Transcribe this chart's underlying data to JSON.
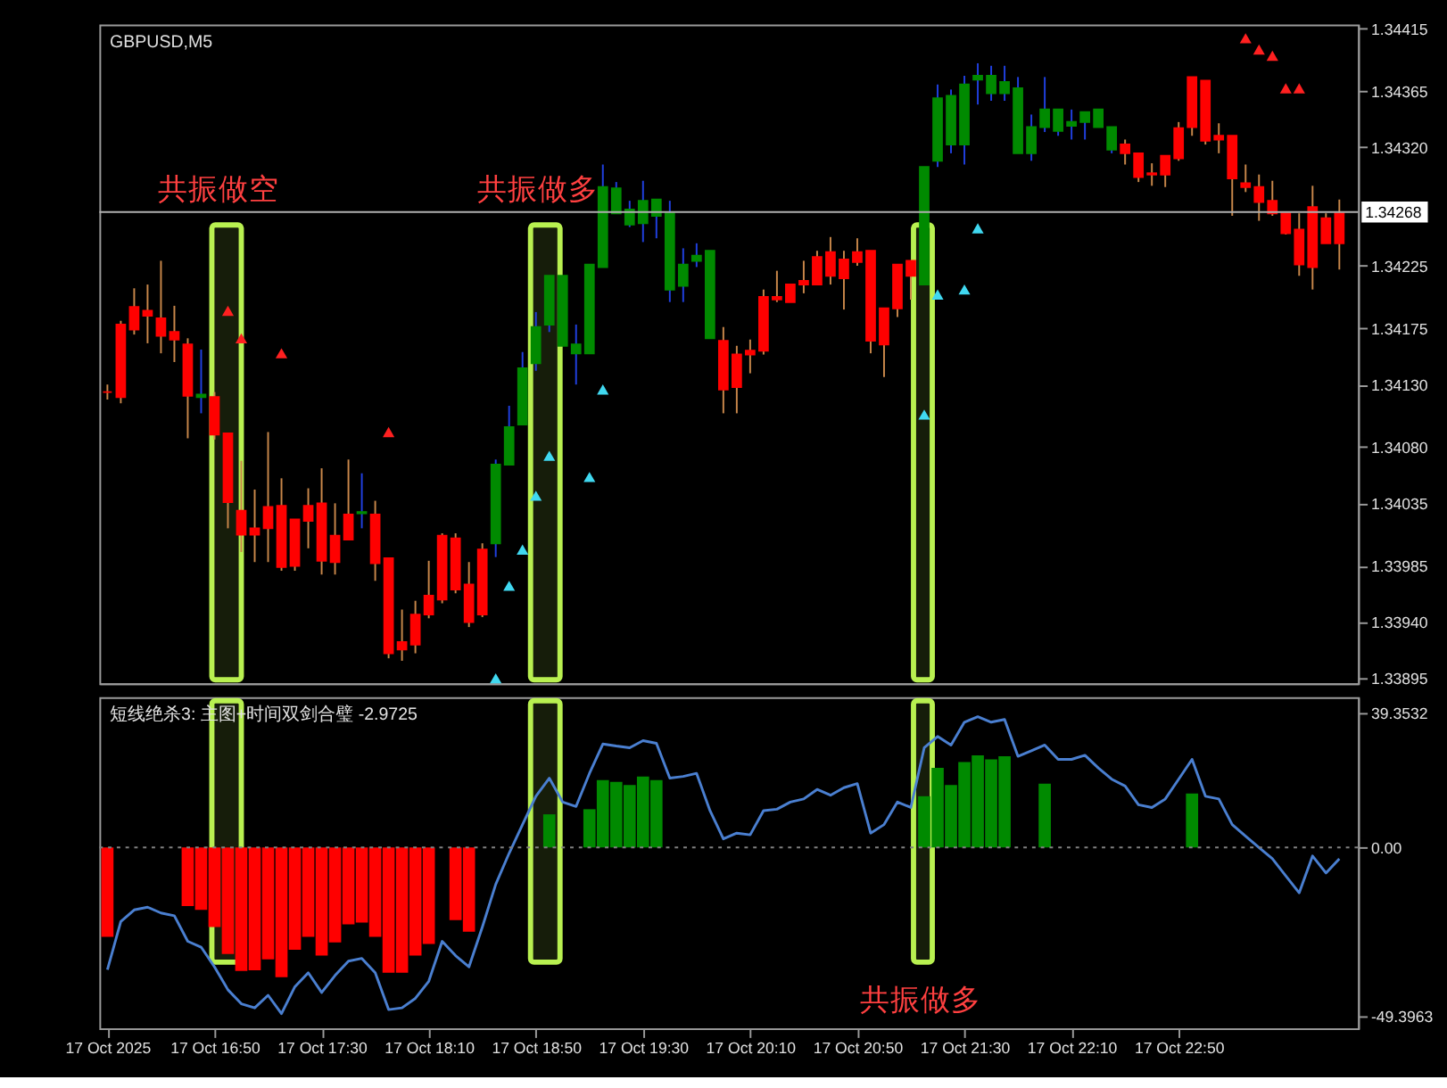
{
  "chart_data": [
    {
      "type": "candlestick",
      "title": "GBPUSD,M5",
      "x": [
        "2025-10-17T16:10",
        "2025-10-17T16:15",
        "2025-10-17T16:20",
        "2025-10-17T16:25",
        "2025-10-17T16:30",
        "2025-10-17T16:35",
        "2025-10-17T16:40",
        "2025-10-17T16:45",
        "2025-10-17T16:50",
        "2025-10-17T16:55",
        "2025-10-17T17:00",
        "2025-10-17T17:05",
        "2025-10-17T17:10",
        "2025-10-17T17:15",
        "2025-10-17T17:20",
        "2025-10-17T17:25",
        "2025-10-17T17:30",
        "2025-10-17T17:35",
        "2025-10-17T17:40",
        "2025-10-17T17:45",
        "2025-10-17T17:50",
        "2025-10-17T17:55",
        "2025-10-17T18:00",
        "2025-10-17T18:05",
        "2025-10-17T18:10",
        "2025-10-17T18:15",
        "2025-10-17T18:20",
        "2025-10-17T18:25",
        "2025-10-17T18:30",
        "2025-10-17T18:35",
        "2025-10-17T18:40",
        "2025-10-17T18:45",
        "2025-10-17T18:50",
        "2025-10-17T18:55",
        "2025-10-17T19:00",
        "2025-10-17T19:05",
        "2025-10-17T19:10",
        "2025-10-17T19:15",
        "2025-10-17T19:20",
        "2025-10-17T19:25",
        "2025-10-17T19:30",
        "2025-10-17T19:35",
        "2025-10-17T19:40",
        "2025-10-17T19:45",
        "2025-10-17T19:50",
        "2025-10-17T19:55",
        "2025-10-17T20:00",
        "2025-10-17T20:05",
        "2025-10-17T20:10",
        "2025-10-17T20:15",
        "2025-10-17T20:20",
        "2025-10-17T20:25",
        "2025-10-17T20:30",
        "2025-10-17T20:35",
        "2025-10-17T20:40",
        "2025-10-17T20:45",
        "2025-10-17T20:50",
        "2025-10-17T20:55",
        "2025-10-17T21:00",
        "2025-10-17T21:05",
        "2025-10-17T21:10",
        "2025-10-17T21:15",
        "2025-10-17T21:20",
        "2025-10-17T21:25",
        "2025-10-17T21:30",
        "2025-10-17T21:35",
        "2025-10-17T21:40",
        "2025-10-17T21:45",
        "2025-10-17T21:50",
        "2025-10-17T21:55",
        "2025-10-17T22:00",
        "2025-10-17T22:05",
        "2025-10-17T22:10",
        "2025-10-17T22:15",
        "2025-10-17T22:20",
        "2025-10-17T22:25",
        "2025-10-17T22:30",
        "2025-10-17T22:35",
        "2025-10-17T22:40",
        "2025-10-17T22:45",
        "2025-10-17T22:50",
        "2025-10-17T22:55",
        "2025-10-17T23:00",
        "2025-10-17T23:05",
        "2025-10-17T23:10",
        "2025-10-17T23:15",
        "2025-10-17T23:20",
        "2025-10-17T23:25",
        "2025-10-17T23:30",
        "2025-10-17T23:35",
        "2025-10-17T23:40",
        "2025-10-17T23:45",
        "2025-10-17T23:50"
      ],
      "ohlc": [
        [
          1.34124,
          1.3413,
          1.34118,
          1.34124
        ],
        [
          1.34178,
          1.34181,
          1.34115,
          1.3412
        ],
        [
          1.34192,
          1.34207,
          1.3417,
          1.34174
        ],
        [
          1.34189,
          1.3421,
          1.34163,
          1.34185
        ],
        [
          1.34183,
          1.34229,
          1.34155,
          1.34169
        ],
        [
          1.34172,
          1.34193,
          1.34148,
          1.34166
        ],
        [
          1.34162,
          1.34167,
          1.34087,
          1.34121
        ],
        [
          1.3412,
          1.34158,
          1.34107,
          1.34122
        ],
        [
          1.3412,
          1.34124,
          1.34086,
          1.3409
        ],
        [
          1.34091,
          1.34091,
          1.34015,
          1.34036
        ],
        [
          1.34029,
          1.34069,
          1.33996,
          1.3401
        ],
        [
          1.34015,
          1.34046,
          1.33988,
          1.3401
        ],
        [
          1.34032,
          1.34092,
          1.33988,
          1.34015
        ],
        [
          1.34033,
          1.34055,
          1.33981,
          1.33984
        ],
        [
          1.34022,
          1.34022,
          1.33981,
          1.33985
        ],
        [
          1.34033,
          1.34047,
          1.33999,
          1.34021
        ],
        [
          1.34035,
          1.34063,
          1.33978,
          1.33989
        ],
        [
          1.34009,
          1.34035,
          1.33978,
          1.33988
        ],
        [
          1.34026,
          1.3407,
          1.34006,
          1.34006
        ],
        [
          1.34027,
          1.34059,
          1.34015,
          1.34028
        ],
        [
          1.34026,
          1.34037,
          1.33973,
          1.33987
        ],
        [
          1.33991,
          1.33991,
          1.33911,
          1.33915
        ],
        [
          1.33924,
          1.3395,
          1.33909,
          1.33918
        ],
        [
          1.33946,
          1.33957,
          1.33915,
          1.33922
        ],
        [
          1.33961,
          1.33989,
          1.33943,
          1.33946
        ],
        [
          1.34009,
          1.34011,
          1.33955,
          1.33958
        ],
        [
          1.34007,
          1.34011,
          1.33963,
          1.33966
        ],
        [
          1.3397,
          1.33988,
          1.33936,
          1.3394
        ],
        [
          1.33998,
          1.34003,
          1.33944,
          1.33946
        ],
        [
          1.34003,
          1.3407,
          1.33992,
          1.34066
        ],
        [
          1.34066,
          1.34113,
          1.34066,
          1.34096
        ],
        [
          1.34098,
          1.34156,
          1.34098,
          1.34143
        ],
        [
          1.34147,
          1.34188,
          1.34141,
          1.34176
        ],
        [
          1.34178,
          1.34217,
          1.34172,
          1.34217
        ],
        [
          1.34161,
          1.34217,
          1.34161,
          1.34217
        ],
        [
          1.34155,
          1.34178,
          1.3413,
          1.34162
        ],
        [
          1.34155,
          1.34226,
          1.34155,
          1.34226
        ],
        [
          1.34224,
          1.34306,
          1.34224,
          1.34288
        ],
        [
          1.34267,
          1.34292,
          1.34267,
          1.34287
        ],
        [
          1.34258,
          1.34277,
          1.34256,
          1.3427
        ],
        [
          1.34259,
          1.34293,
          1.34244,
          1.34277
        ],
        [
          1.34265,
          1.34278,
          1.34247,
          1.34278
        ],
        [
          1.34206,
          1.34277,
          1.34196,
          1.34267
        ],
        [
          1.34209,
          1.34239,
          1.34196,
          1.34226
        ],
        [
          1.34229,
          1.34243,
          1.34224,
          1.34233
        ],
        [
          1.34167,
          1.34237,
          1.34167,
          1.34237
        ],
        [
          1.34165,
          1.34176,
          1.34107,
          1.34126
        ],
        [
          1.34154,
          1.34161,
          1.34107,
          1.34128
        ],
        [
          1.34157,
          1.34166,
          1.34139,
          1.34154
        ],
        [
          1.342,
          1.34206,
          1.34154,
          1.34157
        ],
        [
          1.342,
          1.34221,
          1.34196,
          1.34198
        ],
        [
          1.3421,
          1.3421,
          1.34196,
          1.34196
        ],
        [
          1.34213,
          1.34229,
          1.34203,
          1.3421
        ],
        [
          1.34232,
          1.34237,
          1.3421,
          1.3421
        ],
        [
          1.34236,
          1.34248,
          1.3421,
          1.34217
        ],
        [
          1.3423,
          1.34237,
          1.3419,
          1.34215
        ],
        [
          1.34236,
          1.34247,
          1.34225,
          1.34228
        ],
        [
          1.34237,
          1.34237,
          1.34155,
          1.34165
        ],
        [
          1.34191,
          1.34191,
          1.34136,
          1.34162
        ],
        [
          1.34226,
          1.34226,
          1.34184,
          1.34191
        ],
        [
          1.34229,
          1.34229,
          1.34198,
          1.34217
        ],
        [
          1.3421,
          1.34304,
          1.3421,
          1.34304
        ],
        [
          1.34309,
          1.3437,
          1.34304,
          1.34359
        ],
        [
          1.34322,
          1.34366,
          1.34315,
          1.34361
        ],
        [
          1.34322,
          1.34377,
          1.34306,
          1.3437
        ],
        [
          1.34374,
          1.34387,
          1.34354,
          1.34377
        ],
        [
          1.34363,
          1.34385,
          1.34357,
          1.34377
        ],
        [
          1.34363,
          1.34385,
          1.34357,
          1.34372
        ],
        [
          1.34315,
          1.34376,
          1.34315,
          1.34367
        ],
        [
          1.34315,
          1.34346,
          1.34309,
          1.34336
        ],
        [
          1.34336,
          1.34376,
          1.34332,
          1.3435
        ],
        [
          1.34333,
          1.3435,
          1.34329,
          1.3435
        ],
        [
          1.34337,
          1.3435,
          1.34326,
          1.3434
        ],
        [
          1.3434,
          1.34348,
          1.34326,
          1.34348
        ],
        [
          1.34336,
          1.3435,
          1.34336,
          1.3435
        ],
        [
          1.34318,
          1.34336,
          1.34315,
          1.34336
        ],
        [
          1.34322,
          1.34326,
          1.34306,
          1.34315
        ],
        [
          1.34315,
          1.34315,
          1.34292,
          1.34296
        ],
        [
          1.34299,
          1.34307,
          1.34289,
          1.34298
        ],
        [
          1.34313,
          1.34313,
          1.34288,
          1.34298
        ],
        [
          1.34335,
          1.3434,
          1.34309,
          1.34311
        ],
        [
          1.34376,
          1.34376,
          1.34329,
          1.34336
        ],
        [
          1.34373,
          1.34373,
          1.34322,
          1.34325
        ],
        [
          1.34329,
          1.34339,
          1.34315,
          1.34326
        ],
        [
          1.34329,
          1.34329,
          1.34265,
          1.34295
        ],
        [
          1.34291,
          1.34306,
          1.34284,
          1.34288
        ],
        [
          1.34288,
          1.34298,
          1.34261,
          1.34276
        ],
        [
          1.34277,
          1.34293,
          1.34265,
          1.34267
        ],
        [
          1.34267,
          1.34267,
          1.3425,
          1.34251
        ],
        [
          1.34254,
          1.34267,
          1.34217,
          1.34226
        ],
        [
          1.34272,
          1.34289,
          1.34206,
          1.34224
        ],
        [
          1.34263,
          1.34267,
          1.34243,
          1.34243
        ],
        [
          1.34267,
          1.34278,
          1.34222,
          1.34243
        ]
      ],
      "colors": [
        "#ff0000",
        "#ff0000",
        "#ff0000",
        "#ff0000",
        "#ff0000",
        "#ff0000",
        "#ff0000",
        "#008a00",
        "#ff0000",
        "#ff0000",
        "#ff0000",
        "#ff0000",
        "#ff0000",
        "#ff0000",
        "#ff0000",
        "#ff0000",
        "#ff0000",
        "#ff0000",
        "#ff0000",
        "#008a00",
        "#ff0000",
        "#ff0000",
        "#ff0000",
        "#ff0000",
        "#ff0000",
        "#ff0000",
        "#ff0000",
        "#ff0000",
        "#ff0000",
        "#008a00",
        "#008a00",
        "#008a00",
        "#008a00",
        "#008a00",
        "#008a00",
        "#008a00",
        "#008a00",
        "#008a00",
        "#008a00",
        "#008a00",
        "#008a00",
        "#008a00",
        "#008a00",
        "#008a00",
        "#008a00",
        "#008a00",
        "#ff0000",
        "#ff0000",
        "#ff0000",
        "#ff0000",
        "#ff0000",
        "#ff0000",
        "#ff0000",
        "#ff0000",
        "#ff0000",
        "#ff0000",
        "#ff0000",
        "#ff0000",
        "#ff0000",
        "#ff0000",
        "#ff0000",
        "#008a00",
        "#008a00",
        "#008a00",
        "#008a00",
        "#008a00",
        "#008a00",
        "#008a00",
        "#008a00",
        "#008a00",
        "#008a00",
        "#008a00",
        "#008a00",
        "#008a00",
        "#008a00",
        "#008a00",
        "#ff0000",
        "#ff0000",
        "#ff0000",
        "#ff0000",
        "#ff0000",
        "#ff0000",
        "#ff0000",
        "#ff0000",
        "#ff0000",
        "#ff0000",
        "#ff0000",
        "#ff0000",
        "#ff0000",
        "#ff0000",
        "#ff0000",
        "#ff0000",
        "#ff0000"
      ],
      "series": [
        {
          "type": "scatter",
          "color": "#ff2020",
          "marker": "triangle",
          "x": [
            "2025-10-17T16:55",
            "2025-10-17T17:00",
            "2025-10-17T17:15",
            "2025-10-17T17:55",
            "2025-10-17T23:15",
            "2025-10-17T23:20",
            "2025-10-17T23:25",
            "2025-10-17T23:30",
            "2025-10-17T23:35"
          ],
          "values": [
            1.34189,
            1.34167,
            1.34155,
            1.34092,
            1.34407,
            1.34398,
            1.34393,
            1.34367,
            1.34367
          ]
        },
        {
          "type": "scatter",
          "color": "#40d8f0",
          "marker": "triangle",
          "x": [
            "2025-10-17T18:35",
            "2025-10-17T18:40",
            "2025-10-17T18:45",
            "2025-10-17T18:50",
            "2025-10-17T18:55",
            "2025-10-17T19:10",
            "2025-10-17T19:15",
            "2025-10-17T21:15",
            "2025-10-17T21:20",
            "2025-10-17T21:30",
            "2025-10-17T21:35"
          ],
          "values": [
            1.33895,
            1.33969,
            1.33998,
            1.34041,
            1.34073,
            1.34056,
            1.34126,
            1.34106,
            1.34202,
            1.34206,
            1.34255
          ]
        }
      ],
      "xlim": [
        "2025-10-17T16:07",
        "2025-10-17T23:57"
      ],
      "ylim": [
        1.33891,
        1.34418
      ],
      "yticks": [
        1.34415,
        1.34365,
        {
          "value": 1.3432,
          "label": "1.34320"
        },
        1.34225,
        1.34175,
        {
          "value": 1.3413,
          "label": "1.34130"
        },
        {
          "value": 1.3408,
          "label": "1.34080"
        },
        1.34035,
        1.33985,
        {
          "value": 1.3394,
          "label": "1.33940"
        },
        1.33895
      ],
      "ref_lines": [
        {
          "axis": "y",
          "value": 1.34268,
          "label": "1.34268",
          "color": "#b0b0b0"
        }
      ],
      "bands": [
        {
          "axis": "x",
          "from": "2025-10-17T16:49",
          "to": "2025-10-17T17:00",
          "label": "共振做空",
          "color": "#b8f050"
        },
        {
          "axis": "x",
          "from": "2025-10-17T18:48",
          "to": "2025-10-17T18:59",
          "label": "共振做多",
          "color": "#b8f050"
        },
        {
          "axis": "x",
          "from": "2025-10-17T21:11",
          "to": "2025-10-17T21:18",
          "color": "#b8f050"
        }
      ],
      "tick_labels": "y"
    },
    {
      "type": "bar",
      "title": "短线绝杀3: 主图+时间双剑合璧 -2.9725",
      "x": [
        "2025-10-17T16:10",
        "2025-10-17T16:15",
        "2025-10-17T16:20",
        "2025-10-17T16:25",
        "2025-10-17T16:30",
        "2025-10-17T16:35",
        "2025-10-17T16:40",
        "2025-10-17T16:45",
        "2025-10-17T16:50",
        "2025-10-17T16:55",
        "2025-10-17T17:00",
        "2025-10-17T17:05",
        "2025-10-17T17:10",
        "2025-10-17T17:15",
        "2025-10-17T17:20",
        "2025-10-17T17:25",
        "2025-10-17T17:30",
        "2025-10-17T17:35",
        "2025-10-17T17:40",
        "2025-10-17T17:45",
        "2025-10-17T17:50",
        "2025-10-17T17:55",
        "2025-10-17T18:00",
        "2025-10-17T18:05",
        "2025-10-17T18:10",
        "2025-10-17T18:15",
        "2025-10-17T18:20",
        "2025-10-17T18:25",
        "2025-10-17T18:30",
        "2025-10-17T18:35",
        "2025-10-17T18:40",
        "2025-10-17T18:45",
        "2025-10-17T18:50",
        "2025-10-17T18:55",
        "2025-10-17T19:00",
        "2025-10-17T19:05",
        "2025-10-17T19:10",
        "2025-10-17T19:15",
        "2025-10-17T19:20",
        "2025-10-17T19:25",
        "2025-10-17T19:30",
        "2025-10-17T19:35",
        "2025-10-17T19:40",
        "2025-10-17T19:45",
        "2025-10-17T19:50",
        "2025-10-17T19:55",
        "2025-10-17T20:00",
        "2025-10-17T20:05",
        "2025-10-17T20:10",
        "2025-10-17T20:15",
        "2025-10-17T20:20",
        "2025-10-17T20:25",
        "2025-10-17T20:30",
        "2025-10-17T20:35",
        "2025-10-17T20:40",
        "2025-10-17T20:45",
        "2025-10-17T20:50",
        "2025-10-17T20:55",
        "2025-10-17T21:00",
        "2025-10-17T21:05",
        "2025-10-17T21:10",
        "2025-10-17T21:15",
        "2025-10-17T21:20",
        "2025-10-17T21:25",
        "2025-10-17T21:30",
        "2025-10-17T21:35",
        "2025-10-17T21:40",
        "2025-10-17T21:45",
        "2025-10-17T21:50",
        "2025-10-17T21:55",
        "2025-10-17T22:00",
        "2025-10-17T22:05",
        "2025-10-17T22:10",
        "2025-10-17T22:15",
        "2025-10-17T22:20",
        "2025-10-17T22:25",
        "2025-10-17T22:30",
        "2025-10-17T22:35",
        "2025-10-17T22:40",
        "2025-10-17T22:45",
        "2025-10-17T22:50",
        "2025-10-17T22:55",
        "2025-10-17T23:00",
        "2025-10-17T23:05",
        "2025-10-17T23:10",
        "2025-10-17T23:15",
        "2025-10-17T23:20",
        "2025-10-17T23:25",
        "2025-10-17T23:30",
        "2025-10-17T23:35",
        "2025-10-17T23:40",
        "2025-10-17T23:45",
        "2025-10-17T23:50"
      ],
      "series": [
        {
          "type": "bar",
          "color": "#ff0000",
          "x": [
            "2025-10-17T16:10",
            "2025-10-17T16:40",
            "2025-10-17T16:45",
            "2025-10-17T16:50",
            "2025-10-17T16:55",
            "2025-10-17T17:00",
            "2025-10-17T17:05",
            "2025-10-17T17:10",
            "2025-10-17T17:15",
            "2025-10-17T17:20",
            "2025-10-17T17:25",
            "2025-10-17T17:30",
            "2025-10-17T17:35",
            "2025-10-17T17:40",
            "2025-10-17T17:45",
            "2025-10-17T17:50",
            "2025-10-17T17:55",
            "2025-10-17T18:00",
            "2025-10-17T18:05",
            "2025-10-17T18:10",
            "2025-10-17T18:20",
            "2025-10-17T18:25"
          ],
          "values": [
            -26.2,
            -17.2,
            -18.3,
            -23.3,
            -31.2,
            -36.2,
            -36,
            -32.8,
            -38,
            -30,
            -26.2,
            -31.7,
            -27.8,
            -22.5,
            -22,
            -26.2,
            -36.7,
            -36.7,
            -31.7,
            -28.3,
            -21.3,
            -24.7
          ]
        },
        {
          "type": "bar",
          "color": "#008a00",
          "x": [
            "2025-10-17T18:55",
            "2025-10-17T19:10",
            "2025-10-17T19:15",
            "2025-10-17T19:20",
            "2025-10-17T19:25",
            "2025-10-17T19:30",
            "2025-10-17T19:35",
            "2025-10-17T21:15",
            "2025-10-17T21:20",
            "2025-10-17T21:25",
            "2025-10-17T21:30",
            "2025-10-17T21:35",
            "2025-10-17T21:40",
            "2025-10-17T21:45",
            "2025-10-17T22:00",
            "2025-10-17T22:55"
          ],
          "values": [
            9.7,
            11.2,
            19.7,
            19.2,
            18.3,
            20.8,
            19.7,
            15,
            23.3,
            18.3,
            25,
            27,
            25.8,
            26.7,
            18.7,
            15.8
          ]
        },
        {
          "type": "line",
          "color": "#4a7fd0",
          "values": [
            -35.8,
            -21.7,
            -18.3,
            -17.5,
            -19.2,
            -20,
            -27.5,
            -29.2,
            -35,
            -41.7,
            -45.8,
            -47,
            -43.3,
            -48.7,
            -40.8,
            -36.7,
            -42.5,
            -37.5,
            -33.3,
            -32.5,
            -36.7,
            -47.5,
            -47,
            -44.2,
            -39.2,
            -27.5,
            -31.7,
            -35,
            -23.3,
            -10.8,
            -1.7,
            6.7,
            15,
            20.3,
            13.3,
            12,
            21.7,
            30.3,
            29.7,
            29.2,
            31.3,
            30.5,
            20.3,
            20.8,
            21.7,
            10.8,
            2.5,
            4.2,
            3.7,
            10.8,
            11.2,
            13.3,
            14.2,
            17,
            15.3,
            17.5,
            18.7,
            4.2,
            6.7,
            13.3,
            11.7,
            29.2,
            32.5,
            30,
            36.7,
            38.3,
            36.7,
            37.5,
            26.7,
            28.3,
            30,
            25.8,
            25.8,
            27,
            23.3,
            20,
            18,
            12.5,
            11.7,
            14.2,
            20,
            25.8,
            15,
            14.2,
            6.7,
            3.3,
            0,
            -3.3,
            -8.3,
            -13.3,
            -2.5,
            -7.5,
            -3.3
          ]
        }
      ],
      "xlim": [
        "2025-10-17T16:07",
        "2025-10-17T23:57"
      ],
      "xticks": [
        {
          "value": "2025-10-17T16:10",
          "label": "17 Oct 2025"
        },
        {
          "value": "2025-10-17T16:50",
          "label": "17 Oct 16:50"
        },
        {
          "value": "2025-10-17T17:30",
          "label": "17 Oct 17:30"
        },
        {
          "value": "2025-10-17T18:10",
          "label": "17 Oct 18:10"
        },
        {
          "value": "2025-10-17T18:50",
          "label": "17 Oct 18:50"
        },
        {
          "value": "2025-10-17T19:30",
          "label": "17 Oct 19:30"
        },
        {
          "value": "2025-10-17T20:10",
          "label": "17 Oct 20:10"
        },
        {
          "value": "2025-10-17T20:50",
          "label": "17 Oct 20:50"
        },
        {
          "value": "2025-10-17T21:30",
          "label": "17 Oct 21:30"
        },
        {
          "value": "2025-10-17T22:10",
          "label": "17 Oct 22:10"
        },
        {
          "value": "2025-10-17T22:50",
          "label": "17 Oct 22:50"
        }
      ],
      "ylim": [
        -53,
        44
      ],
      "yticks": [
        39.3532,
        {
          "value": 0,
          "label": "0.00"
        },
        -49.3963
      ],
      "ref_lines": [
        {
          "axis": "y",
          "value": 0,
          "color": "#808080",
          "line_style": "dotted"
        }
      ],
      "bands": [
        {
          "axis": "x",
          "from": "2025-10-17T16:49",
          "to": "2025-10-17T17:00",
          "color": "#b8f050"
        },
        {
          "axis": "x",
          "from": "2025-10-17T18:48",
          "to": "2025-10-17T18:59",
          "color": "#b8f050"
        },
        {
          "axis": "x",
          "from": "2025-10-17T21:11",
          "to": "2025-10-17T21:18",
          "label": "共振做多",
          "color": "#b8f050"
        }
      ]
    }
  ]
}
